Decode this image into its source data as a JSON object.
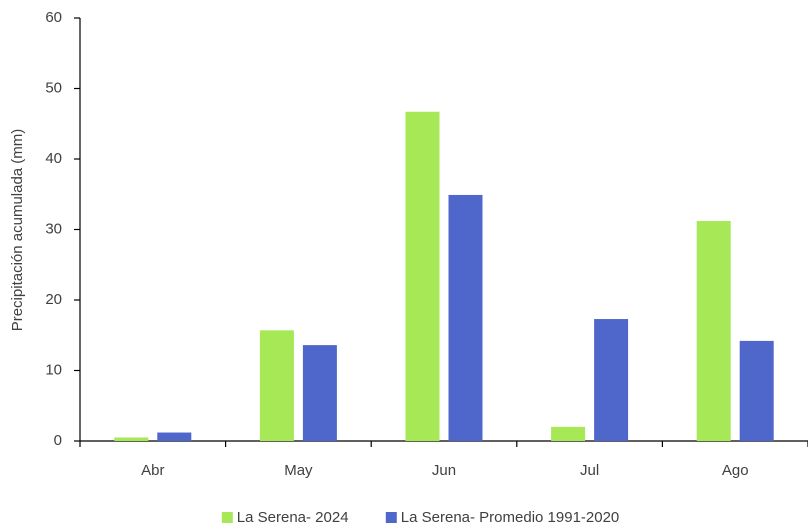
{
  "chart_data": {
    "type": "bar",
    "y_label": "Precipitación acumulada (mm)",
    "categories": [
      "Abr",
      "May",
      "Jun",
      "Jul",
      "Ago"
    ],
    "series": [
      {
        "name": "La Serena- 2024",
        "color": "#a6e856",
        "values": [
          0.5,
          15.7,
          46.7,
          2.0,
          31.2
        ]
      },
      {
        "name": "La Serena- Promedio 1991-2020",
        "color": "#4f67cb",
        "values": [
          1.2,
          13.6,
          34.9,
          17.3,
          14.2
        ]
      }
    ],
    "ylim": [
      0,
      60
    ],
    "yticks": [
      0,
      10,
      20,
      30,
      40,
      50,
      60
    ],
    "grid": false,
    "legend": "bottom"
  }
}
